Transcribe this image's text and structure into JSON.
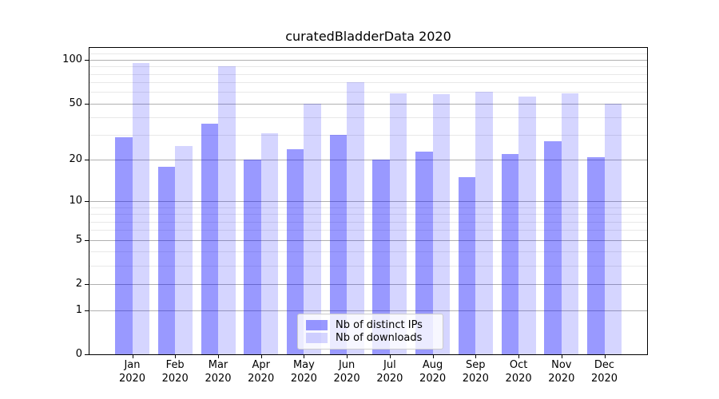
{
  "chart_data": {
    "type": "bar",
    "title": "curatedBladderData 2020",
    "categories": [
      "Jan",
      "Feb",
      "Mar",
      "Apr",
      "May",
      "Jun",
      "Jul",
      "Aug",
      "Sep",
      "Oct",
      "Nov",
      "Dec"
    ],
    "category_year": "2020",
    "series": [
      {
        "name": "Nb of distinct IPs",
        "color_hex": "#9999ff",
        "color_rgba": "rgba(0,0,255,0.40)",
        "values": [
          29,
          18,
          36,
          20,
          24,
          30,
          20,
          23,
          15,
          22,
          27,
          21
        ]
      },
      {
        "name": "Nb of downloads",
        "color_hex": "#d5d5ff",
        "color_rgba": "rgba(0,0,255,0.165)",
        "values": [
          95,
          25,
          90,
          31,
          50,
          70,
          59,
          58,
          60,
          56,
          59,
          50
        ]
      }
    ],
    "xlabel": "",
    "ylabel": "",
    "yscale": "log1p",
    "ylim": [
      0,
      120
    ],
    "yticks_major": [
      0,
      1,
      2,
      5,
      10,
      20,
      50,
      100
    ],
    "yticks_minor": [
      3,
      4,
      6,
      7,
      8,
      9,
      30,
      40,
      60,
      70,
      80,
      90,
      110
    ],
    "grid": true,
    "legend_position": "lower center"
  },
  "colors": {
    "background": "#ffffff",
    "spine": "#000000",
    "major_grid": "#b0b0b0",
    "minor_grid": "#e8e8e8",
    "text": "#000000"
  }
}
